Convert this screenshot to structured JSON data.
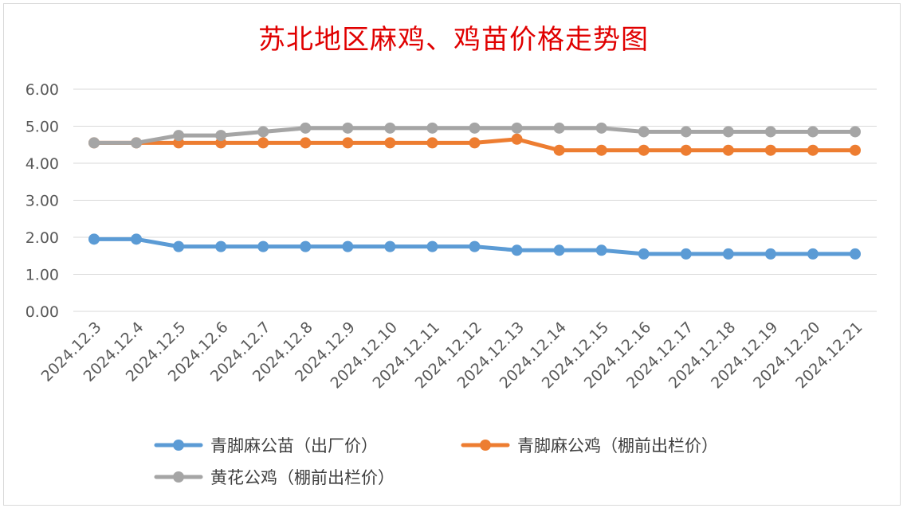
{
  "chart_data": {
    "type": "line",
    "title": "苏北地区麻鸡、鸡苗价格走势图",
    "xlabel": "",
    "ylabel": "",
    "ylim": [
      0,
      6
    ],
    "yticks": [
      "0.00",
      "1.00",
      "2.00",
      "3.00",
      "4.00",
      "5.00",
      "6.00"
    ],
    "grid": true,
    "legend_position": "bottom",
    "categories": [
      "2024.12.3",
      "2024.12.4",
      "2024.12.5",
      "2024.12.6",
      "2024.12.7",
      "2024.12.8",
      "2024.12.9",
      "2024.12.10",
      "2024.12.11",
      "2024.12.12",
      "2024.12.13",
      "2024.12.14",
      "2024.12.15",
      "2024.12.16",
      "2024.12.17",
      "2024.12.18",
      "2024.12.19",
      "2024.12.20",
      "2024.12.21"
    ],
    "series": [
      {
        "name": "青脚麻公苗（出厂价）",
        "color": "#5b9bd5",
        "values": [
          1.95,
          1.95,
          1.75,
          1.75,
          1.75,
          1.75,
          1.75,
          1.75,
          1.75,
          1.75,
          1.65,
          1.65,
          1.65,
          1.55,
          1.55,
          1.55,
          1.55,
          1.55,
          1.55
        ]
      },
      {
        "name": "青脚麻公鸡（棚前出栏价）",
        "color": "#ed7d31",
        "values": [
          4.55,
          4.55,
          4.55,
          4.55,
          4.55,
          4.55,
          4.55,
          4.55,
          4.55,
          4.55,
          4.65,
          4.35,
          4.35,
          4.35,
          4.35,
          4.35,
          4.35,
          4.35,
          4.35
        ]
      },
      {
        "name": "黄花公鸡（棚前出栏价）",
        "color": "#a5a5a5",
        "values": [
          4.55,
          4.55,
          4.75,
          4.75,
          4.85,
          4.95,
          4.95,
          4.95,
          4.95,
          4.95,
          4.95,
          4.95,
          4.95,
          4.85,
          4.85,
          4.85,
          4.85,
          4.85,
          4.85
        ]
      }
    ]
  }
}
